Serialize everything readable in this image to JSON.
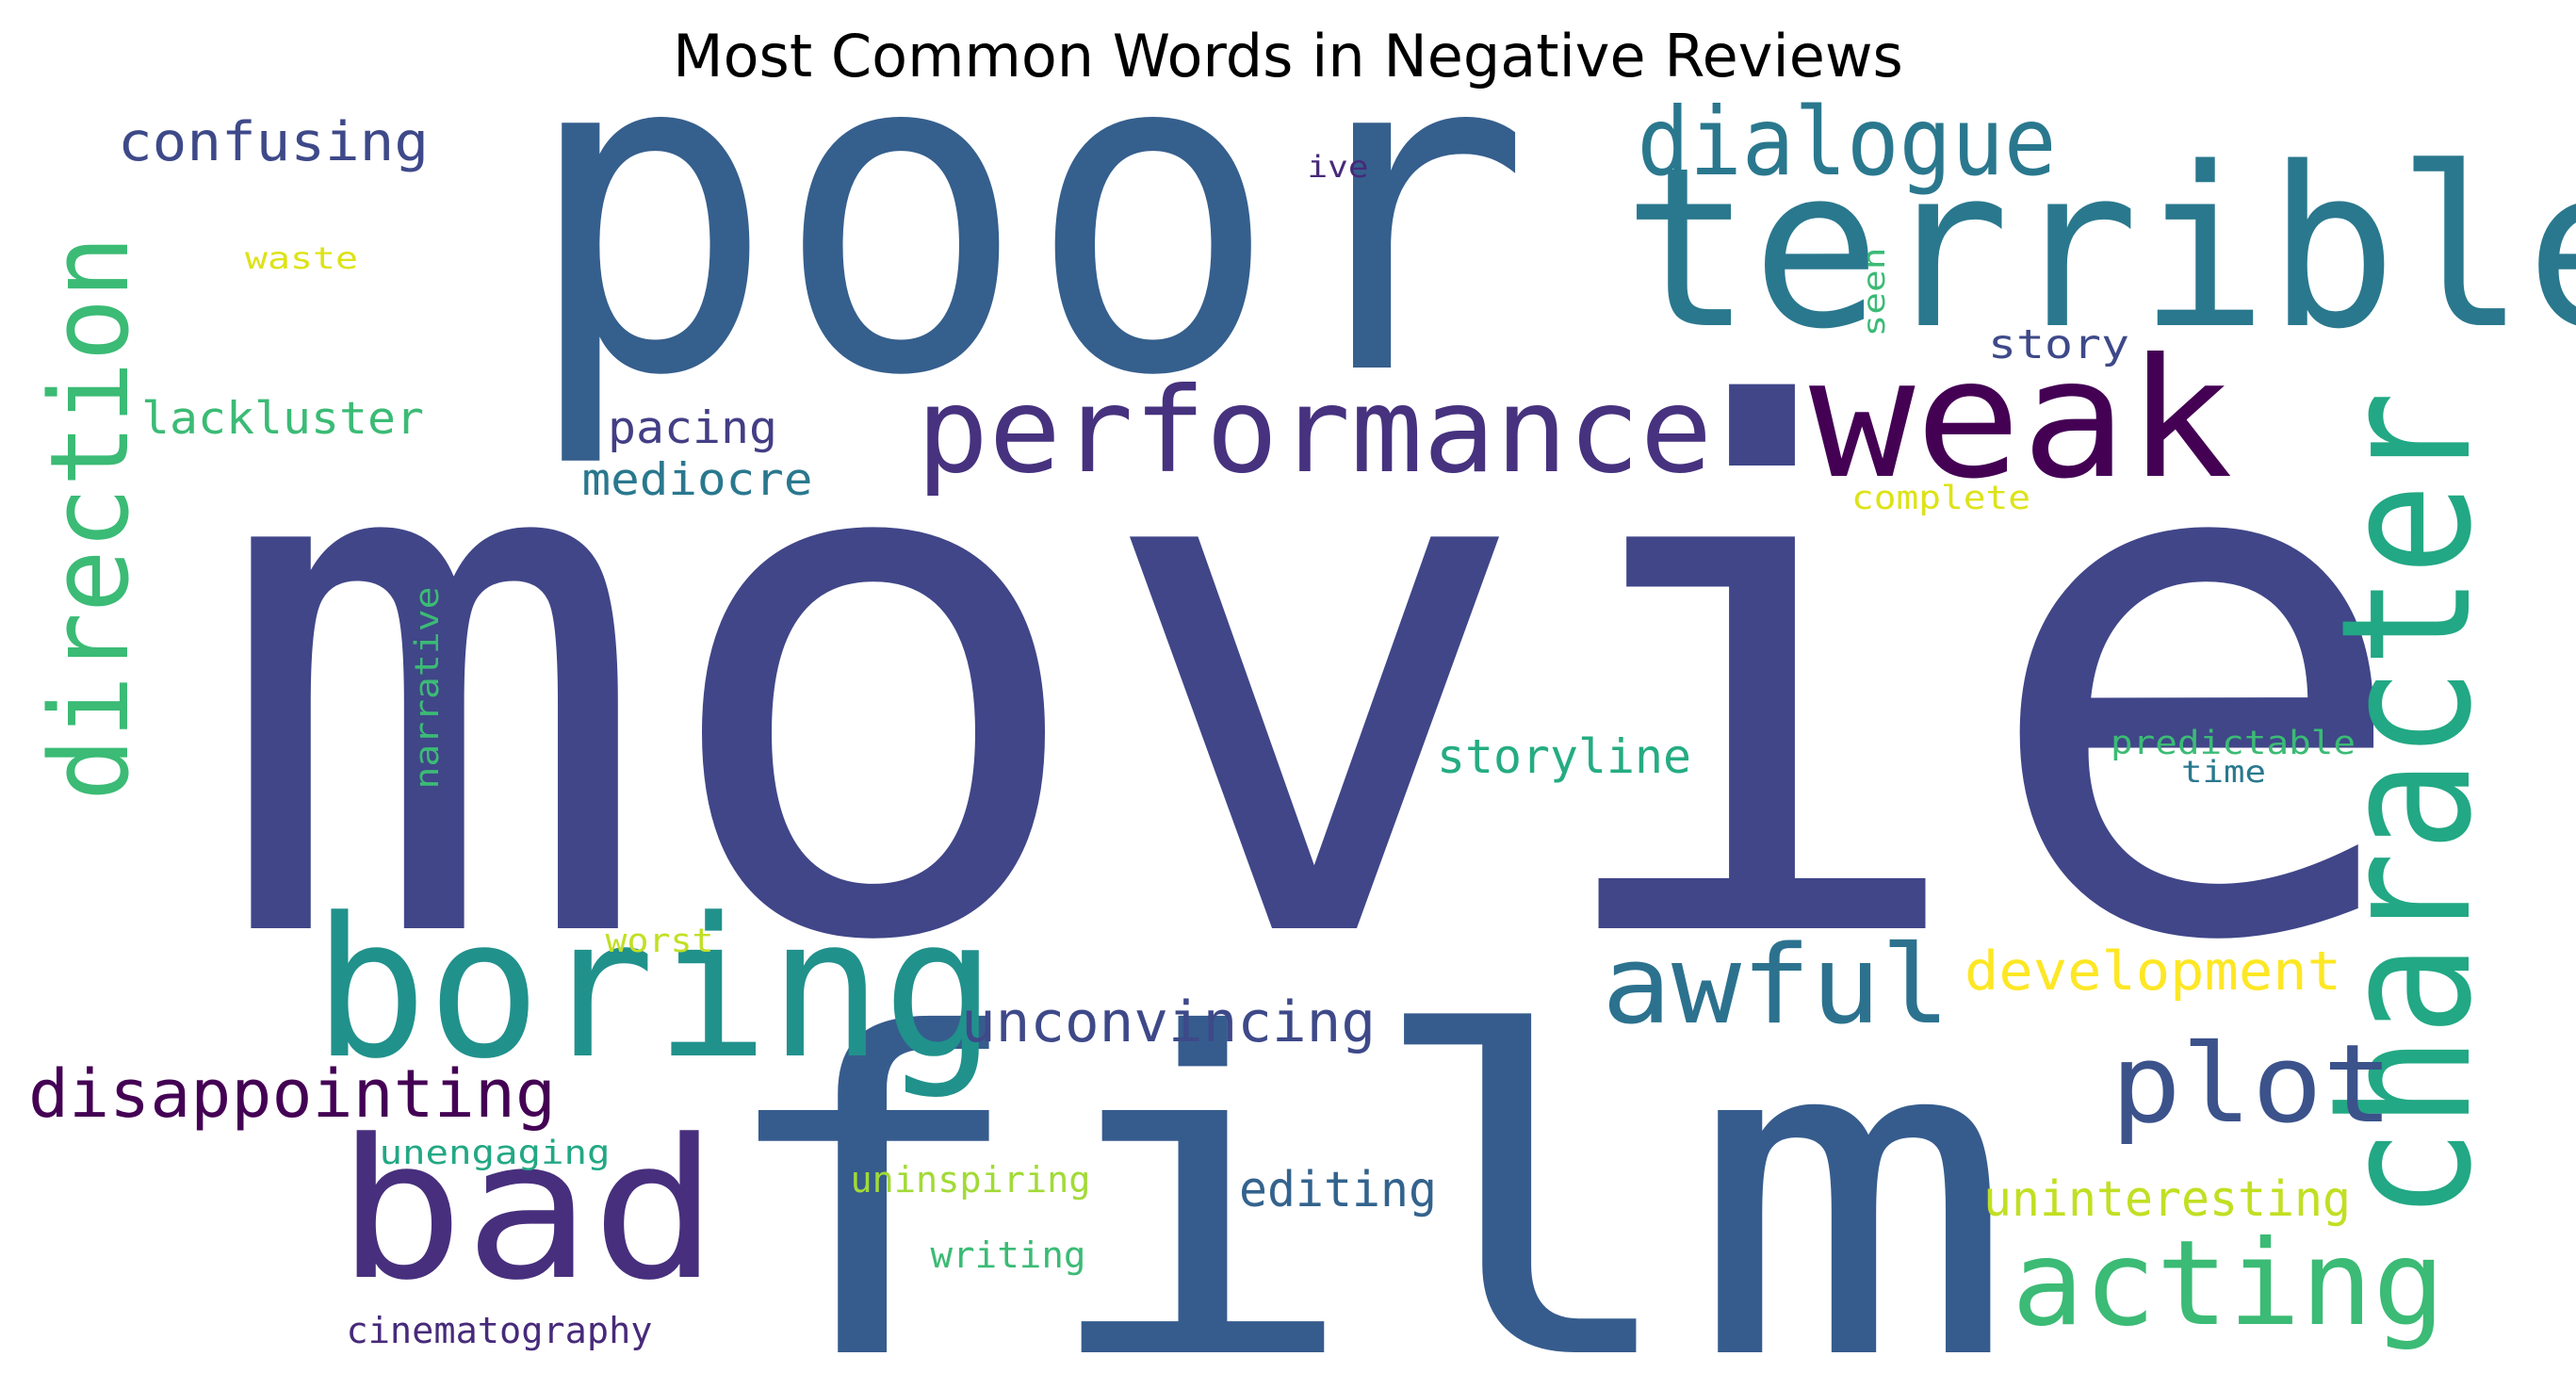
{
  "chart_data": {
    "type": "wordcloud",
    "title": "Most Common Words in Negative Reviews",
    "background": "#ffffff",
    "colormap": "viridis",
    "words": [
      {
        "text": "movie",
        "weight": 1.0,
        "color": "#404688",
        "orientation": "horizontal"
      },
      {
        "text": "poor",
        "weight": 0.62,
        "color": "#355f8d",
        "orientation": "horizontal"
      },
      {
        "text": "film",
        "weight": 0.62,
        "color": "#365c8d",
        "orientation": "horizontal"
      },
      {
        "text": "terrible",
        "weight": 0.36,
        "color": "#2a788e",
        "orientation": "horizontal"
      },
      {
        "text": "character",
        "weight": 0.33,
        "color": "#22a884",
        "orientation": "vertical"
      },
      {
        "text": "boring",
        "weight": 0.3,
        "color": "#21918c",
        "orientation": "horizontal"
      },
      {
        "text": "bad",
        "weight": 0.3,
        "color": "#472f7d",
        "orientation": "horizontal"
      },
      {
        "text": "weak",
        "weight": 0.24,
        "color": "#440154",
        "orientation": "horizontal"
      },
      {
        "text": "direction",
        "weight": 0.2,
        "color": "#3bbb75",
        "orientation": "vertical"
      },
      {
        "text": "performance",
        "weight": 0.18,
        "color": "#46327e",
        "orientation": "horizontal"
      },
      {
        "text": "acting",
        "weight": 0.18,
        "color": "#3bbb75",
        "orientation": "horizontal"
      },
      {
        "text": "plot",
        "weight": 0.17,
        "color": "#3b528b",
        "orientation": "horizontal"
      },
      {
        "text": "awful",
        "weight": 0.16,
        "color": "#2c728e",
        "orientation": "horizontal"
      },
      {
        "text": "dialogue",
        "weight": 0.14,
        "color": "#2a788e",
        "orientation": "horizontal"
      },
      {
        "text": "disappointing",
        "weight": 0.1,
        "color": "#440154",
        "orientation": "horizontal"
      },
      {
        "text": "unconvincing",
        "weight": 0.085,
        "color": "#3e4989",
        "orientation": "horizontal"
      },
      {
        "text": "development",
        "weight": 0.08,
        "color": "#fde725",
        "orientation": "horizontal"
      },
      {
        "text": "confusing",
        "weight": 0.08,
        "color": "#3e4989",
        "orientation": "horizontal"
      },
      {
        "text": "editing",
        "weight": 0.07,
        "color": "#33638d",
        "orientation": "horizontal"
      },
      {
        "text": "uninteresting",
        "weight": 0.07,
        "color": "#c2df23",
        "orientation": "horizontal"
      },
      {
        "text": "storyline",
        "weight": 0.07,
        "color": "#25ac82",
        "orientation": "horizontal"
      },
      {
        "text": "lackluster",
        "weight": 0.065,
        "color": "#3bbb75",
        "orientation": "horizontal"
      },
      {
        "text": "pacing",
        "weight": 0.065,
        "color": "#433e85",
        "orientation": "horizontal"
      },
      {
        "text": "mediocre",
        "weight": 0.065,
        "color": "#2a788e",
        "orientation": "horizontal"
      },
      {
        "text": "story",
        "weight": 0.06,
        "color": "#3e4989",
        "orientation": "horizontal"
      },
      {
        "text": "cinematography",
        "weight": 0.05,
        "color": "#472a7a",
        "orientation": "horizontal"
      },
      {
        "text": "uninspiring",
        "weight": 0.05,
        "color": "#a2da37",
        "orientation": "horizontal"
      },
      {
        "text": "writing",
        "weight": 0.05,
        "color": "#3bbb75",
        "orientation": "horizontal"
      },
      {
        "text": "unengaging",
        "weight": 0.045,
        "color": "#22a884",
        "orientation": "horizontal"
      },
      {
        "text": "narrative",
        "weight": 0.045,
        "color": "#3bbb75",
        "orientation": "vertical"
      },
      {
        "text": "predictable",
        "weight": 0.045,
        "color": "#3bbb75",
        "orientation": "horizontal"
      },
      {
        "text": "complete",
        "weight": 0.045,
        "color": "#dde318",
        "orientation": "horizontal"
      },
      {
        "text": "worst",
        "weight": 0.045,
        "color": "#c2df23",
        "orientation": "horizontal"
      },
      {
        "text": "time",
        "weight": 0.04,
        "color": "#2a788e",
        "orientation": "horizontal"
      },
      {
        "text": "waste",
        "weight": 0.04,
        "color": "#dde318",
        "orientation": "horizontal"
      },
      {
        "text": "seen",
        "weight": 0.04,
        "color": "#3bbb75",
        "orientation": "vertical"
      },
      {
        "text": "ive",
        "weight": 0.04,
        "color": "#472a7a",
        "orientation": "horizontal"
      }
    ]
  }
}
